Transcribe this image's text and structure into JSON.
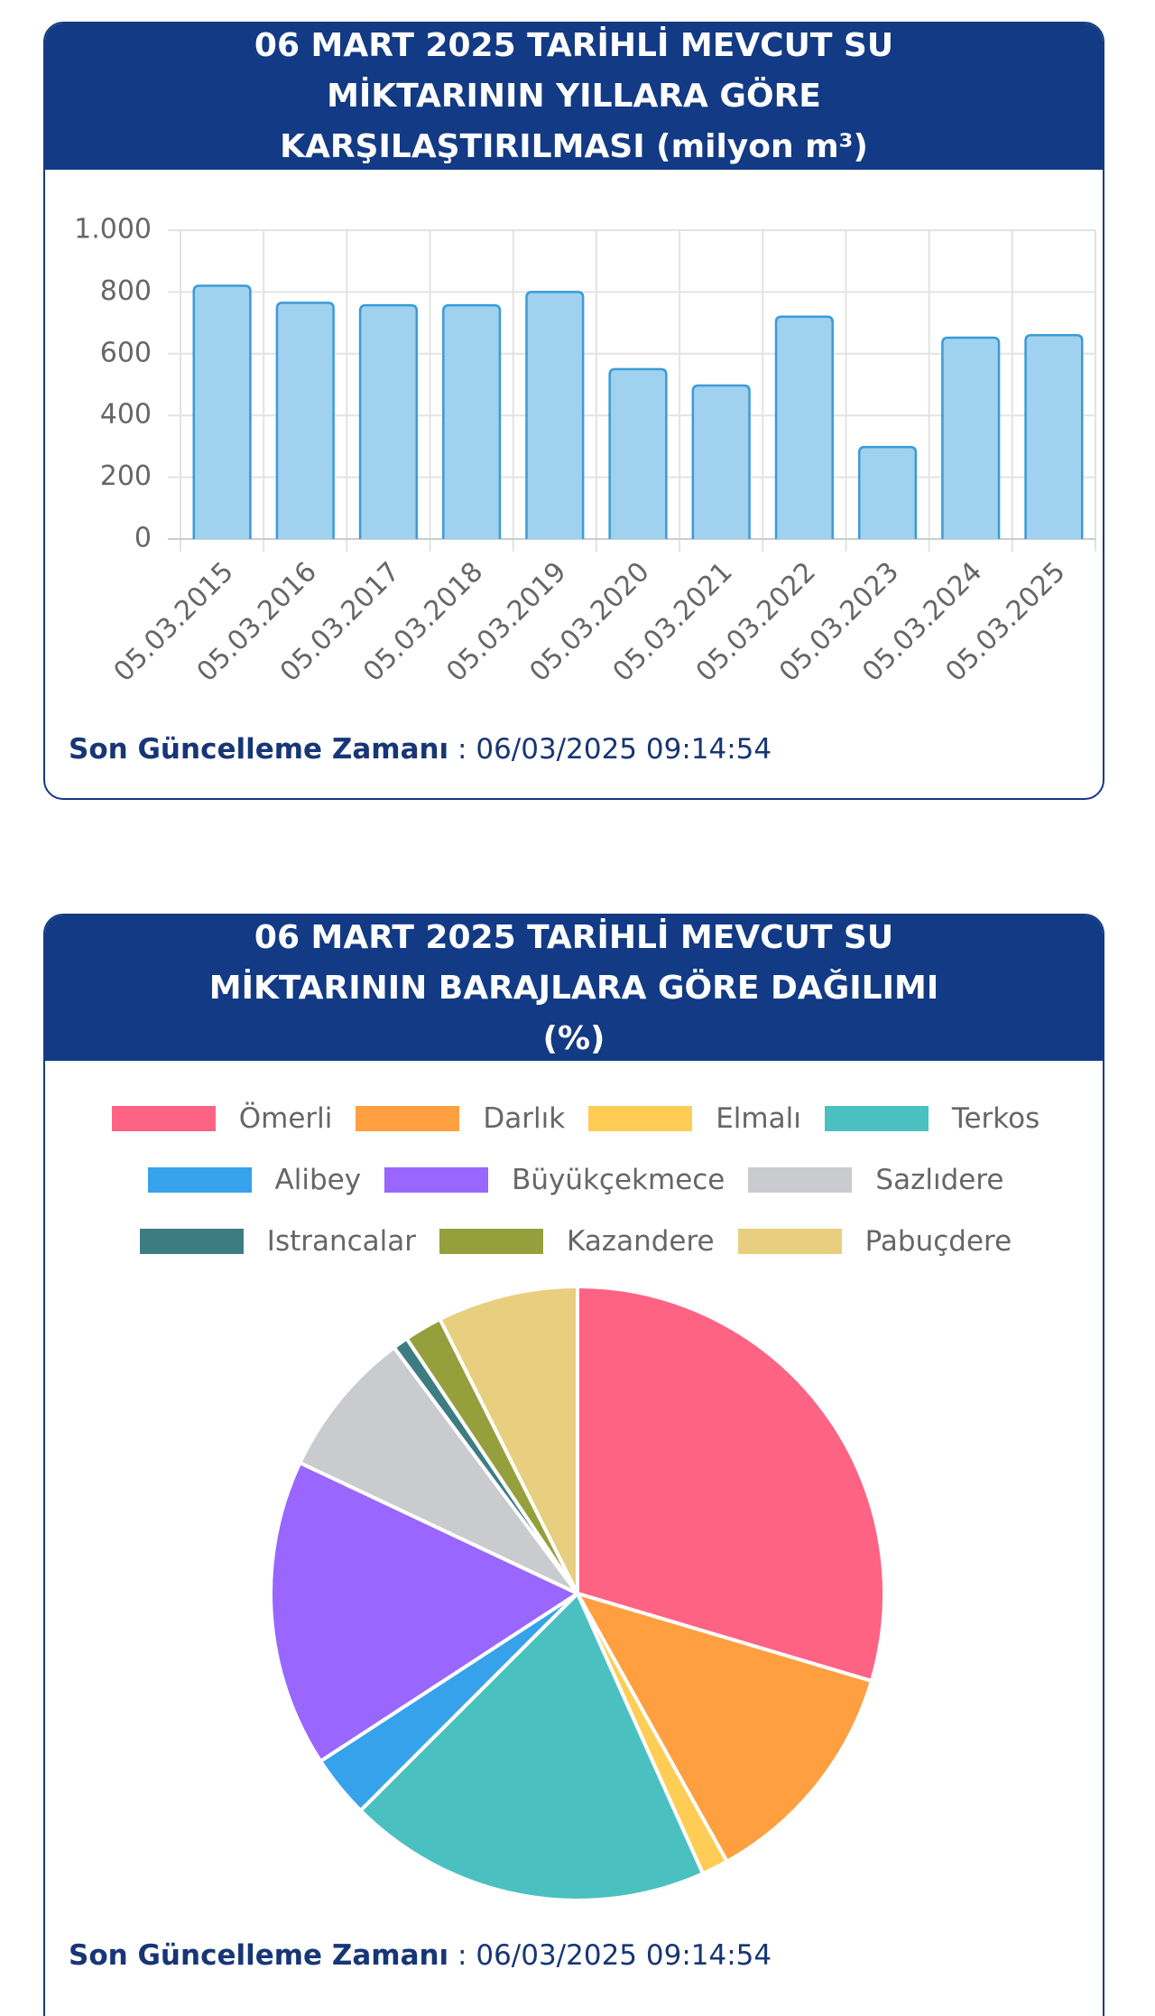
{
  "chart_data": [
    {
      "type": "bar",
      "title": "06 MART 2025 TARİHLİ MEVCUT SU MİKTARININ YILLARA GÖRE KARŞILAŞTIRILMASI (milyon m³)",
      "categories": [
        "05.03.2015",
        "05.03.2016",
        "05.03.2017",
        "05.03.2018",
        "05.03.2019",
        "05.03.2020",
        "05.03.2021",
        "05.03.2022",
        "05.03.2023",
        "05.03.2024",
        "05.03.2025"
      ],
      "values": [
        820,
        765,
        757,
        757,
        800,
        550,
        497,
        720,
        298,
        652,
        660
      ],
      "color": "#a0d1ee",
      "border_color": "#3a9bd9",
      "ylim": [
        0,
        1000
      ],
      "yticks": [
        0,
        200,
        400,
        600,
        800,
        {
          "value": 1000,
          "label": "1.000"
        }
      ],
      "grid": true,
      "footer_label": "Son Güncelleme Zamanı",
      "footer_value": ": 06/03/2025 09:14:54"
    },
    {
      "type": "pie",
      "title": "06 MART 2025 TARİHLİ MEVCUT SU MİKTARININ BARAJLARA GÖRE DAĞILIMI (%)",
      "categories": [
        "Ömerli",
        "Darlık",
        "Elmalı",
        "Terkos",
        "Alibey",
        "Büyükçekmece",
        "Sazlıdere",
        "Istrancalar",
        "Kazandere",
        "Pabuçdere"
      ],
      "values": [
        29.6,
        12.3,
        1.4,
        19.2,
        3.3,
        16.2,
        7.8,
        0.8,
        2.0,
        7.4
      ],
      "colors": [
        "#ff6384",
        "#ff9f40",
        "#ffcd56",
        "#4bc0c0",
        "#36a2eb",
        "#9966ff",
        "#c9cbcf",
        "#3d7d82",
        "#95a03c",
        "#e8cf7f"
      ],
      "footer_label": "Son Güncelleme Zamanı",
      "footer_value": ": 06/03/2025 09:14:54"
    }
  ]
}
